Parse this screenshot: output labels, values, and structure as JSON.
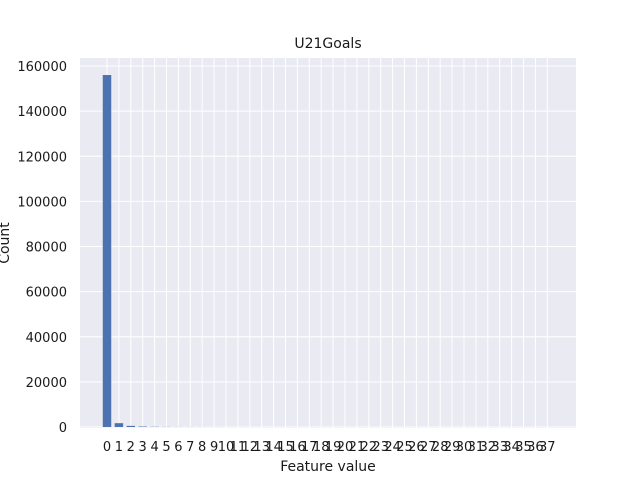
{
  "chart_data": {
    "type": "bar",
    "title": "U21Goals",
    "xlabel": "Feature value",
    "ylabel": "Count",
    "categories": [
      "0",
      "1",
      "2",
      "3",
      "4",
      "5",
      "6",
      "7",
      "8",
      "9",
      "10",
      "11",
      "12",
      "13",
      "14",
      "15",
      "16",
      "17",
      "18",
      "19",
      "20",
      "21",
      "22",
      "23",
      "24",
      "25",
      "26",
      "27",
      "28",
      "29",
      "30",
      "31",
      "32",
      "33",
      "34",
      "35",
      "36",
      "37"
    ],
    "values": [
      156000,
      1700,
      500,
      200,
      100,
      60,
      40,
      30,
      20,
      15,
      10,
      8,
      6,
      5,
      4,
      3,
      3,
      2,
      2,
      2,
      1,
      1,
      1,
      1,
      1,
      1,
      1,
      1,
      1,
      1,
      1,
      1,
      1,
      1,
      1,
      1,
      1,
      1
    ],
    "yticks": [
      0,
      20000,
      40000,
      60000,
      80000,
      100000,
      120000,
      140000,
      160000
    ],
    "ylim": [
      0,
      160000
    ],
    "grid": true,
    "colors": {
      "bar": "#4c72b0",
      "plot_bg": "#eaeaf2",
      "grid": "#ffffff",
      "text": "#1a1a1a"
    }
  }
}
